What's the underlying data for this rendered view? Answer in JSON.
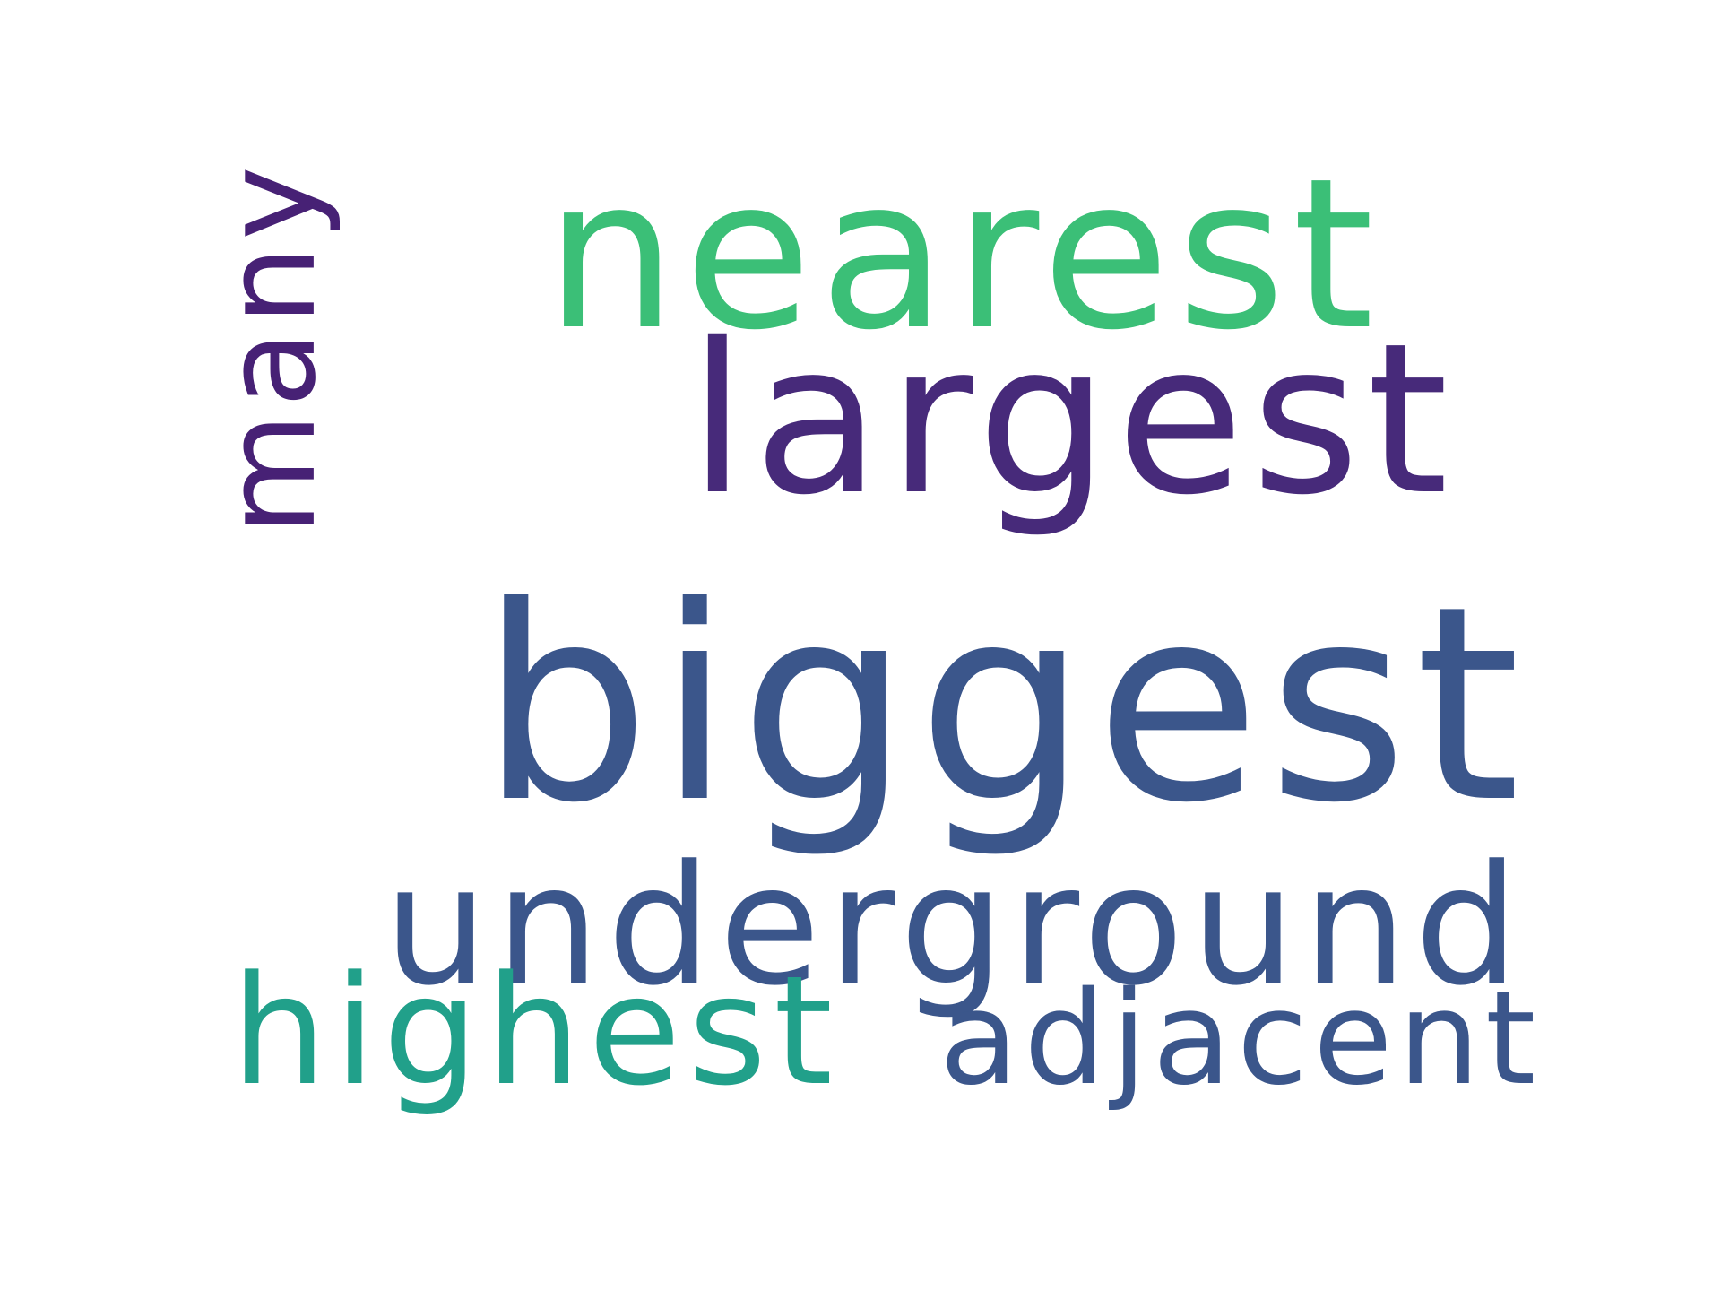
{
  "cloud": {
    "words": {
      "nearest": {
        "text": "nearest",
        "color": "#3bbf77"
      },
      "largest": {
        "text": "largest",
        "color": "#472a7a"
      },
      "biggest": {
        "text": "biggest",
        "color": "#3b568b"
      },
      "underground": {
        "text": "underground",
        "color": "#3b568b"
      },
      "highest": {
        "text": "highest",
        "color": "#21a08a"
      },
      "adjacent": {
        "text": "adjacent",
        "color": "#3b568b"
      },
      "many": {
        "text": "many",
        "color": "#472175"
      }
    }
  }
}
